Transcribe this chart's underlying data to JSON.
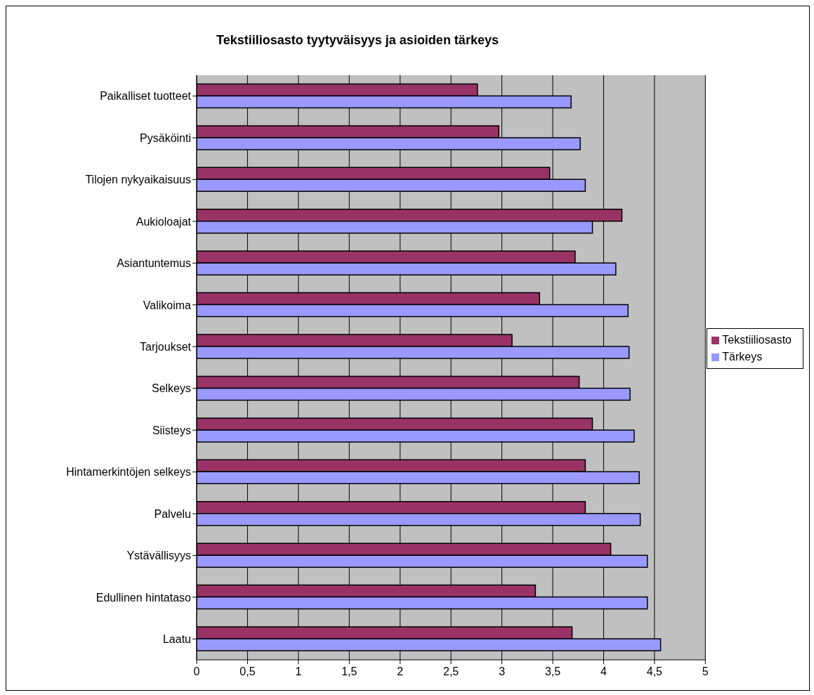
{
  "chart_data": {
    "type": "bar",
    "orientation": "horizontal",
    "title": "Tekstiiliosasto tyytyväisyys ja asioiden tärkeys",
    "categories": [
      "Paikalliset tuotteet",
      "Pysäköinti",
      "Tilojen nykyaikaisuus",
      "Aukioloajat",
      "Asiantuntemus",
      "Valikoima",
      "Tarjoukset",
      "Selkeys",
      "Siisteys",
      "Hintamerkintöjen selkeys",
      "Palvelu",
      "Ystävällisyys",
      "Edullinen hintataso",
      "Laatu"
    ],
    "series": [
      {
        "name": "Tekstiiliosasto",
        "color": "#993366",
        "values": [
          2.76,
          2.97,
          3.47,
          4.18,
          3.72,
          3.37,
          3.1,
          3.76,
          3.89,
          3.82,
          3.82,
          4.07,
          3.33,
          3.69
        ]
      },
      {
        "name": "Tärkeys",
        "color": "#9999ff",
        "values": [
          3.68,
          3.77,
          3.82,
          3.89,
          4.12,
          4.24,
          4.25,
          4.26,
          4.3,
          4.35,
          4.36,
          4.43,
          4.43,
          4.56
        ]
      }
    ],
    "xlim": [
      0,
      5
    ],
    "xticks": [
      0,
      {
        "value": 0.5,
        "label": "0,5"
      },
      1,
      {
        "value": 1.5,
        "label": "1,5"
      },
      2,
      {
        "value": 2.5,
        "label": "2,5"
      },
      3,
      {
        "value": 3.5,
        "label": "3,5"
      },
      4,
      {
        "value": 4.5,
        "label": "4,5"
      },
      5
    ],
    "grid": "x",
    "legend": "right"
  }
}
